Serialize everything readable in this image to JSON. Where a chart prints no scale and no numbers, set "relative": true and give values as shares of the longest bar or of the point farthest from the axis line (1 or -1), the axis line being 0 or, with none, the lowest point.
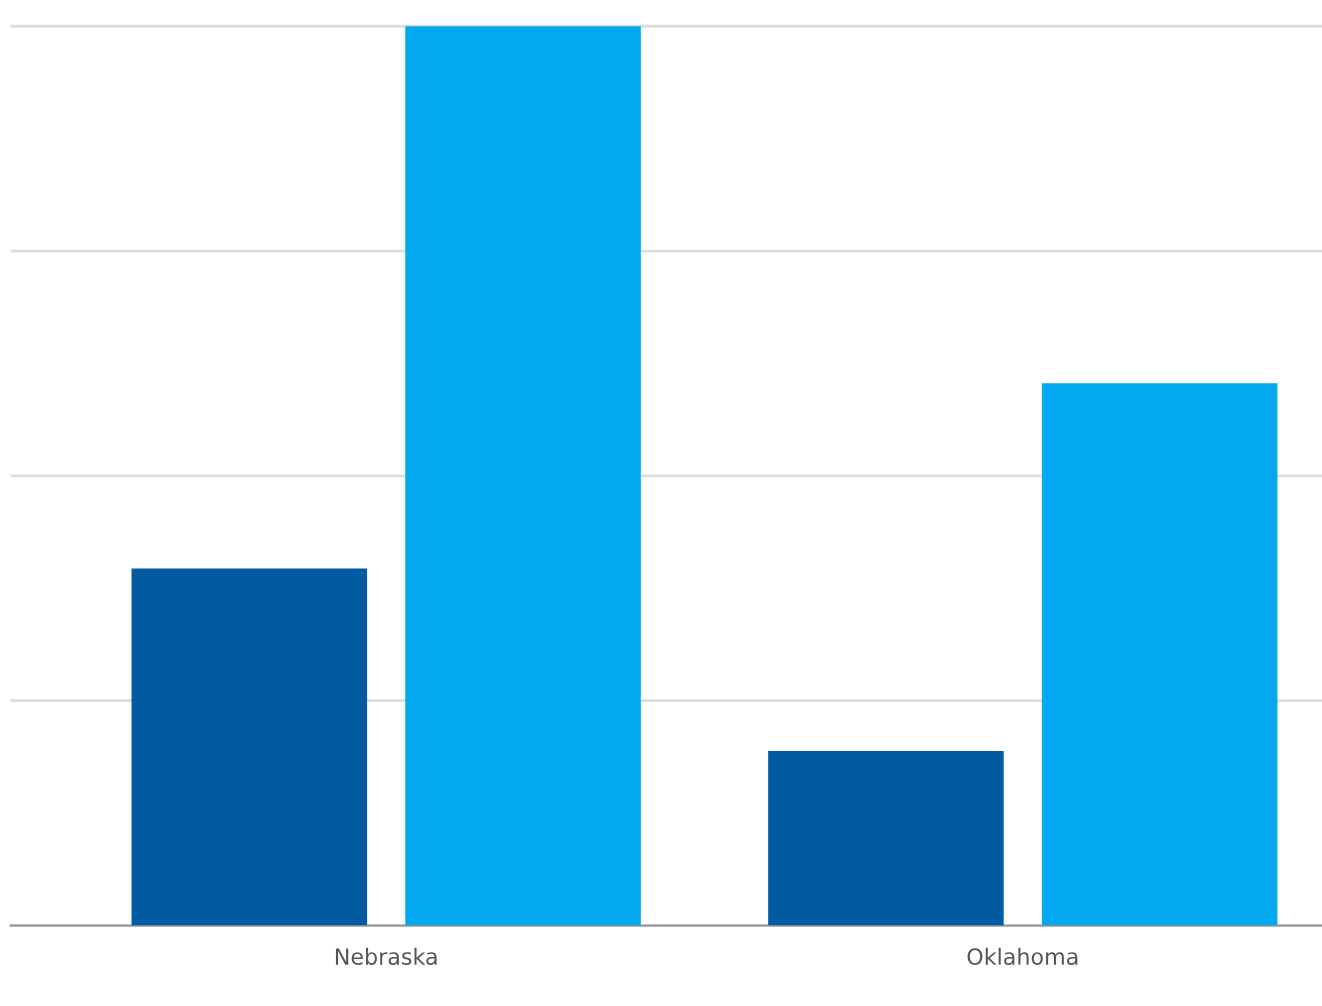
{
  "chart_data": {
    "type": "bar",
    "relative": true,
    "categories": [
      "Nebraska",
      "Oklahoma"
    ],
    "series": [
      {
        "color": "#005ba3",
        "values": [
          0.397,
          0.194
        ]
      },
      {
        "color": "#02a8f0",
        "values": [
          1,
          0.603
        ]
      }
    ],
    "grid": "y"
  }
}
